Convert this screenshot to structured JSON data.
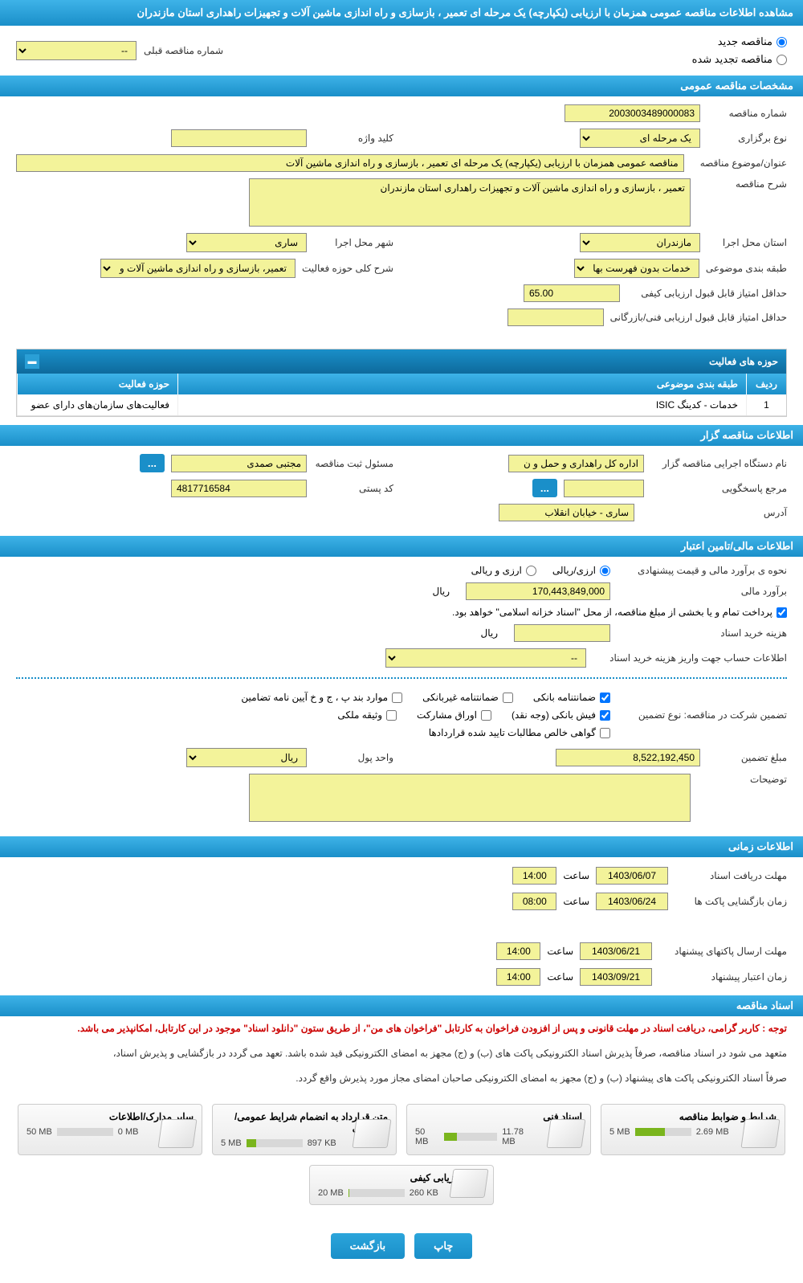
{
  "header": {
    "page_title": "مشاهده اطلاعات مناقصه عمومی همزمان با ارزیابی (یکپارچه) یک مرحله ای تعمیر ، بازسازی و راه اندازی ماشین آلات و تجهیزات راهداری استان مازندران"
  },
  "top_radio": {
    "new_label": "مناقصه جدید",
    "renewed_label": "مناقصه تجدید شده",
    "prev_tender_label": "شماره مناقصه قبلی",
    "prev_tender_value": "--"
  },
  "sections": {
    "general": {
      "title": "مشخصات مناقصه عمومی",
      "tender_no_label": "شماره مناقصه",
      "tender_no": "2003003489000083",
      "type_label": "نوع برگزاری",
      "type_value": "یک مرحله ای",
      "keyword_label": "کلید واژه",
      "keyword_value": "",
      "subject_label": "عنوان/موضوع مناقصه",
      "subject_value": "مناقصه عمومی همزمان با ارزیابی (یکپارچه) یک مرحله ای تعمیر ، بازسازی و راه اندازی ماشین آلات",
      "desc_label": "شرح مناقصه",
      "desc_value": "تعمیر ، بازسازی و راه اندازی ماشین آلات و تجهیزات راهداری استان مازندران",
      "province_label": "استان محل اجرا",
      "province_value": "مازندران",
      "city_label": "شهر محل اجرا",
      "city_value": "ساری",
      "category_label": "طبقه بندی موضوعی",
      "category_value": "خدمات بدون فهرست بها",
      "activity_area_label": "شرح کلی حوزه فعالیت",
      "activity_area_value": "تعمیر، بازسازی و راه اندازی ماشین آلات و",
      "min_qual_score_label": "حداقل امتیاز قابل قبول ارزیابی کیفی",
      "min_qual_score": "65.00",
      "min_tech_score_label": "حداقل امتیاز قابل قبول ارزیابی فنی/بازرگانی",
      "min_tech_score": ""
    },
    "activities": {
      "title": "حوزه های فعالیت",
      "col_idx": "ردیف",
      "col_cat": "طبقه بندی موضوعی",
      "col_area": "حوزه فعالیت",
      "rows": [
        {
          "idx": "1",
          "cat": "خدمات - کدینگ ISIC",
          "area": "فعالیت‌های سازمان‌های دارای عضو"
        }
      ]
    },
    "organizer": {
      "title": "اطلاعات مناقصه گزار",
      "agency_label": "نام دستگاه اجرایی مناقصه گزار",
      "agency_value": "اداره کل راهداری و حمل و ن",
      "registrar_label": "مسئول ثبت مناقصه",
      "registrar_value": "مجتبی صمدی",
      "responder_label": "مرجع پاسخگویی",
      "responder_value": "",
      "postal_label": "کد پستی",
      "postal_value": "4817716584",
      "address_label": "آدرس",
      "address_value": "ساری - خیابان انقلاب",
      "dots": "..."
    },
    "financial": {
      "title": "اطلاعات مالی/تامین اعتبار",
      "estimate_method_label": "نحوه ی برآورد مالی و قیمت پیشنهادی",
      "opt_rial": "ارزی/ریالی",
      "opt_currency": "ارزی و ریالی",
      "estimate_label": "برآورد مالی",
      "estimate_value": "170,443,849,000",
      "unit_rial": "ریال",
      "payment_note": "پرداخت تمام و یا بخشی از مبلغ مناقصه، از محل \"اسناد خزانه اسلامی\" خواهد بود.",
      "doc_cost_label": "هزینه خرید اسناد",
      "doc_cost_value": "",
      "doc_account_label": "اطلاعات حساب جهت واریز هزینه خرید اسناد",
      "doc_account_value": "--"
    },
    "guarantee": {
      "label_type": "تضمین شرکت در مناقصه:   نوع تضمین",
      "opt_bank_guarantee": "ضمانتنامه بانکی",
      "opt_nonbank_guarantee": "ضمانتنامه غیربانکی",
      "opt_regulations": "موارد بند پ ، ج و خ آیین نامه تضامین",
      "opt_cash": "فیش بانکی (وجه نقد)",
      "opt_securities": "اوراق مشارکت",
      "opt_property": "وثیقه ملکی",
      "opt_receivables": "گواهی خالص مطالبات تایید شده قراردادها",
      "amount_label": "مبلغ تضمین",
      "amount_value": "8,522,192,450",
      "unit_label": "واحد پول",
      "unit_value": "ریال",
      "notes_label": "توضیحات",
      "notes_value": ""
    },
    "timing": {
      "title": "اطلاعات زمانی",
      "doc_deadline_label": "مهلت دریافت اسناد",
      "doc_deadline_date": "1403/06/07",
      "doc_deadline_time": "14:00",
      "send_deadline_label": "مهلت ارسال پاکتهای پیشنهاد",
      "send_deadline_date": "1403/06/21",
      "send_deadline_time": "14:00",
      "open_label": "زمان بازگشایی پاکت ها",
      "open_date": "1403/06/24",
      "open_time": "08:00",
      "validity_label": "زمان اعتبار پیشنهاد",
      "validity_date": "1403/09/21",
      "validity_time": "14:00",
      "time_label": "ساعت"
    },
    "documents": {
      "title": "اسناد مناقصه",
      "note_red": "توجه : کاربر گرامی، دریافت اسناد در مهلت قانونی و پس از افزودن فراخوان به کارتابل \"فراخوان های من\"، از طریق ستون \"دانلود اسناد\" موجود در این کارتابل، امکانپذیر می باشد.",
      "note_dark1": "متعهد می شود در اسناد مناقصه، صرفاً پذیرش اسناد الکترونیکی پاکت های (ب) و (ج) مجهز به امضای الکترونیکی قید شده باشد. تعهد می گردد در بازگشایی و پذیرش اسناد،",
      "note_dark2": "صرفاً اسناد الکترونیکی پاکت های پیشنهاد (ب) و (ج) مجهز به امضای الکترونیکی صاحبان امضای مجاز مورد پذیرش واقع گردد.",
      "cards": [
        {
          "title": "شرایط و ضوابط مناقصه",
          "used": "2.69 MB",
          "limit": "5 MB",
          "pct": 54
        },
        {
          "title": "اسناد فنی",
          "used": "11.78 MB",
          "limit": "50 MB",
          "pct": 24
        },
        {
          "title": "متن قرارداد به انضمام شرایط عمومی/خصوصی",
          "used": "897 KB",
          "limit": "5 MB",
          "pct": 18
        },
        {
          "title": "سایر مدارک/اطلاعات",
          "used": "0 MB",
          "limit": "50 MB",
          "pct": 0
        },
        {
          "title": "اسناد ارزیابی کیفی",
          "used": "260 KB",
          "limit": "20 MB",
          "pct": 2
        }
      ]
    }
  },
  "footer": {
    "print_label": "چاپ",
    "back_label": "بازگشت"
  }
}
